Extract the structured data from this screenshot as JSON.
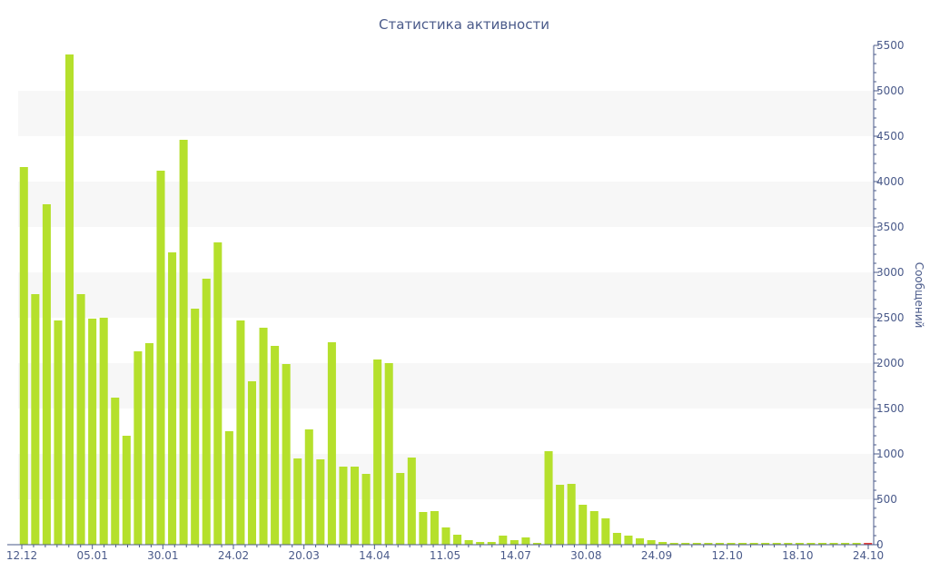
{
  "chart_data": {
    "type": "bar",
    "title": "Статистика активности",
    "ylabel": "Сообщений",
    "xlabel": "",
    "ylim": [
      0,
      5500
    ],
    "y_ticks": [
      0,
      500,
      1000,
      1500,
      2000,
      2500,
      3000,
      3500,
      4000,
      4500,
      5000,
      5500
    ],
    "y_axis_position": "right",
    "x_tick_labels": [
      "12.12",
      "05.01",
      "30.01",
      "24.02",
      "20.03",
      "14.04",
      "11.05",
      "14.07",
      "30.08",
      "24.09",
      "12.10",
      "18.10",
      "24.10"
    ],
    "grid": "alternating horizontal bands",
    "bar_color": "#b5e02c",
    "highlight_color": "#e8403a",
    "values": [
      4160,
      2760,
      3750,
      2470,
      5400,
      2760,
      2490,
      2500,
      1620,
      1200,
      2130,
      2220,
      4120,
      3220,
      4460,
      2600,
      2930,
      3330,
      1250,
      2470,
      1800,
      2390,
      2190,
      1990,
      950,
      1270,
      940,
      2230,
      860,
      860,
      780,
      2040,
      2000,
      790,
      960,
      360,
      370,
      190,
      110,
      50,
      30,
      30,
      100,
      50,
      80,
      20,
      1030,
      660,
      670,
      440,
      370,
      290,
      130,
      100,
      70,
      50,
      30,
      20,
      20,
      20,
      20,
      20,
      20,
      20,
      20,
      20,
      20,
      20,
      20,
      20,
      20,
      20,
      20,
      20,
      20
    ],
    "highlight_last": true
  },
  "colors": {
    "text": "#4a5a8a",
    "axis": "#4a5a8a",
    "band": "#f7f7f7"
  }
}
